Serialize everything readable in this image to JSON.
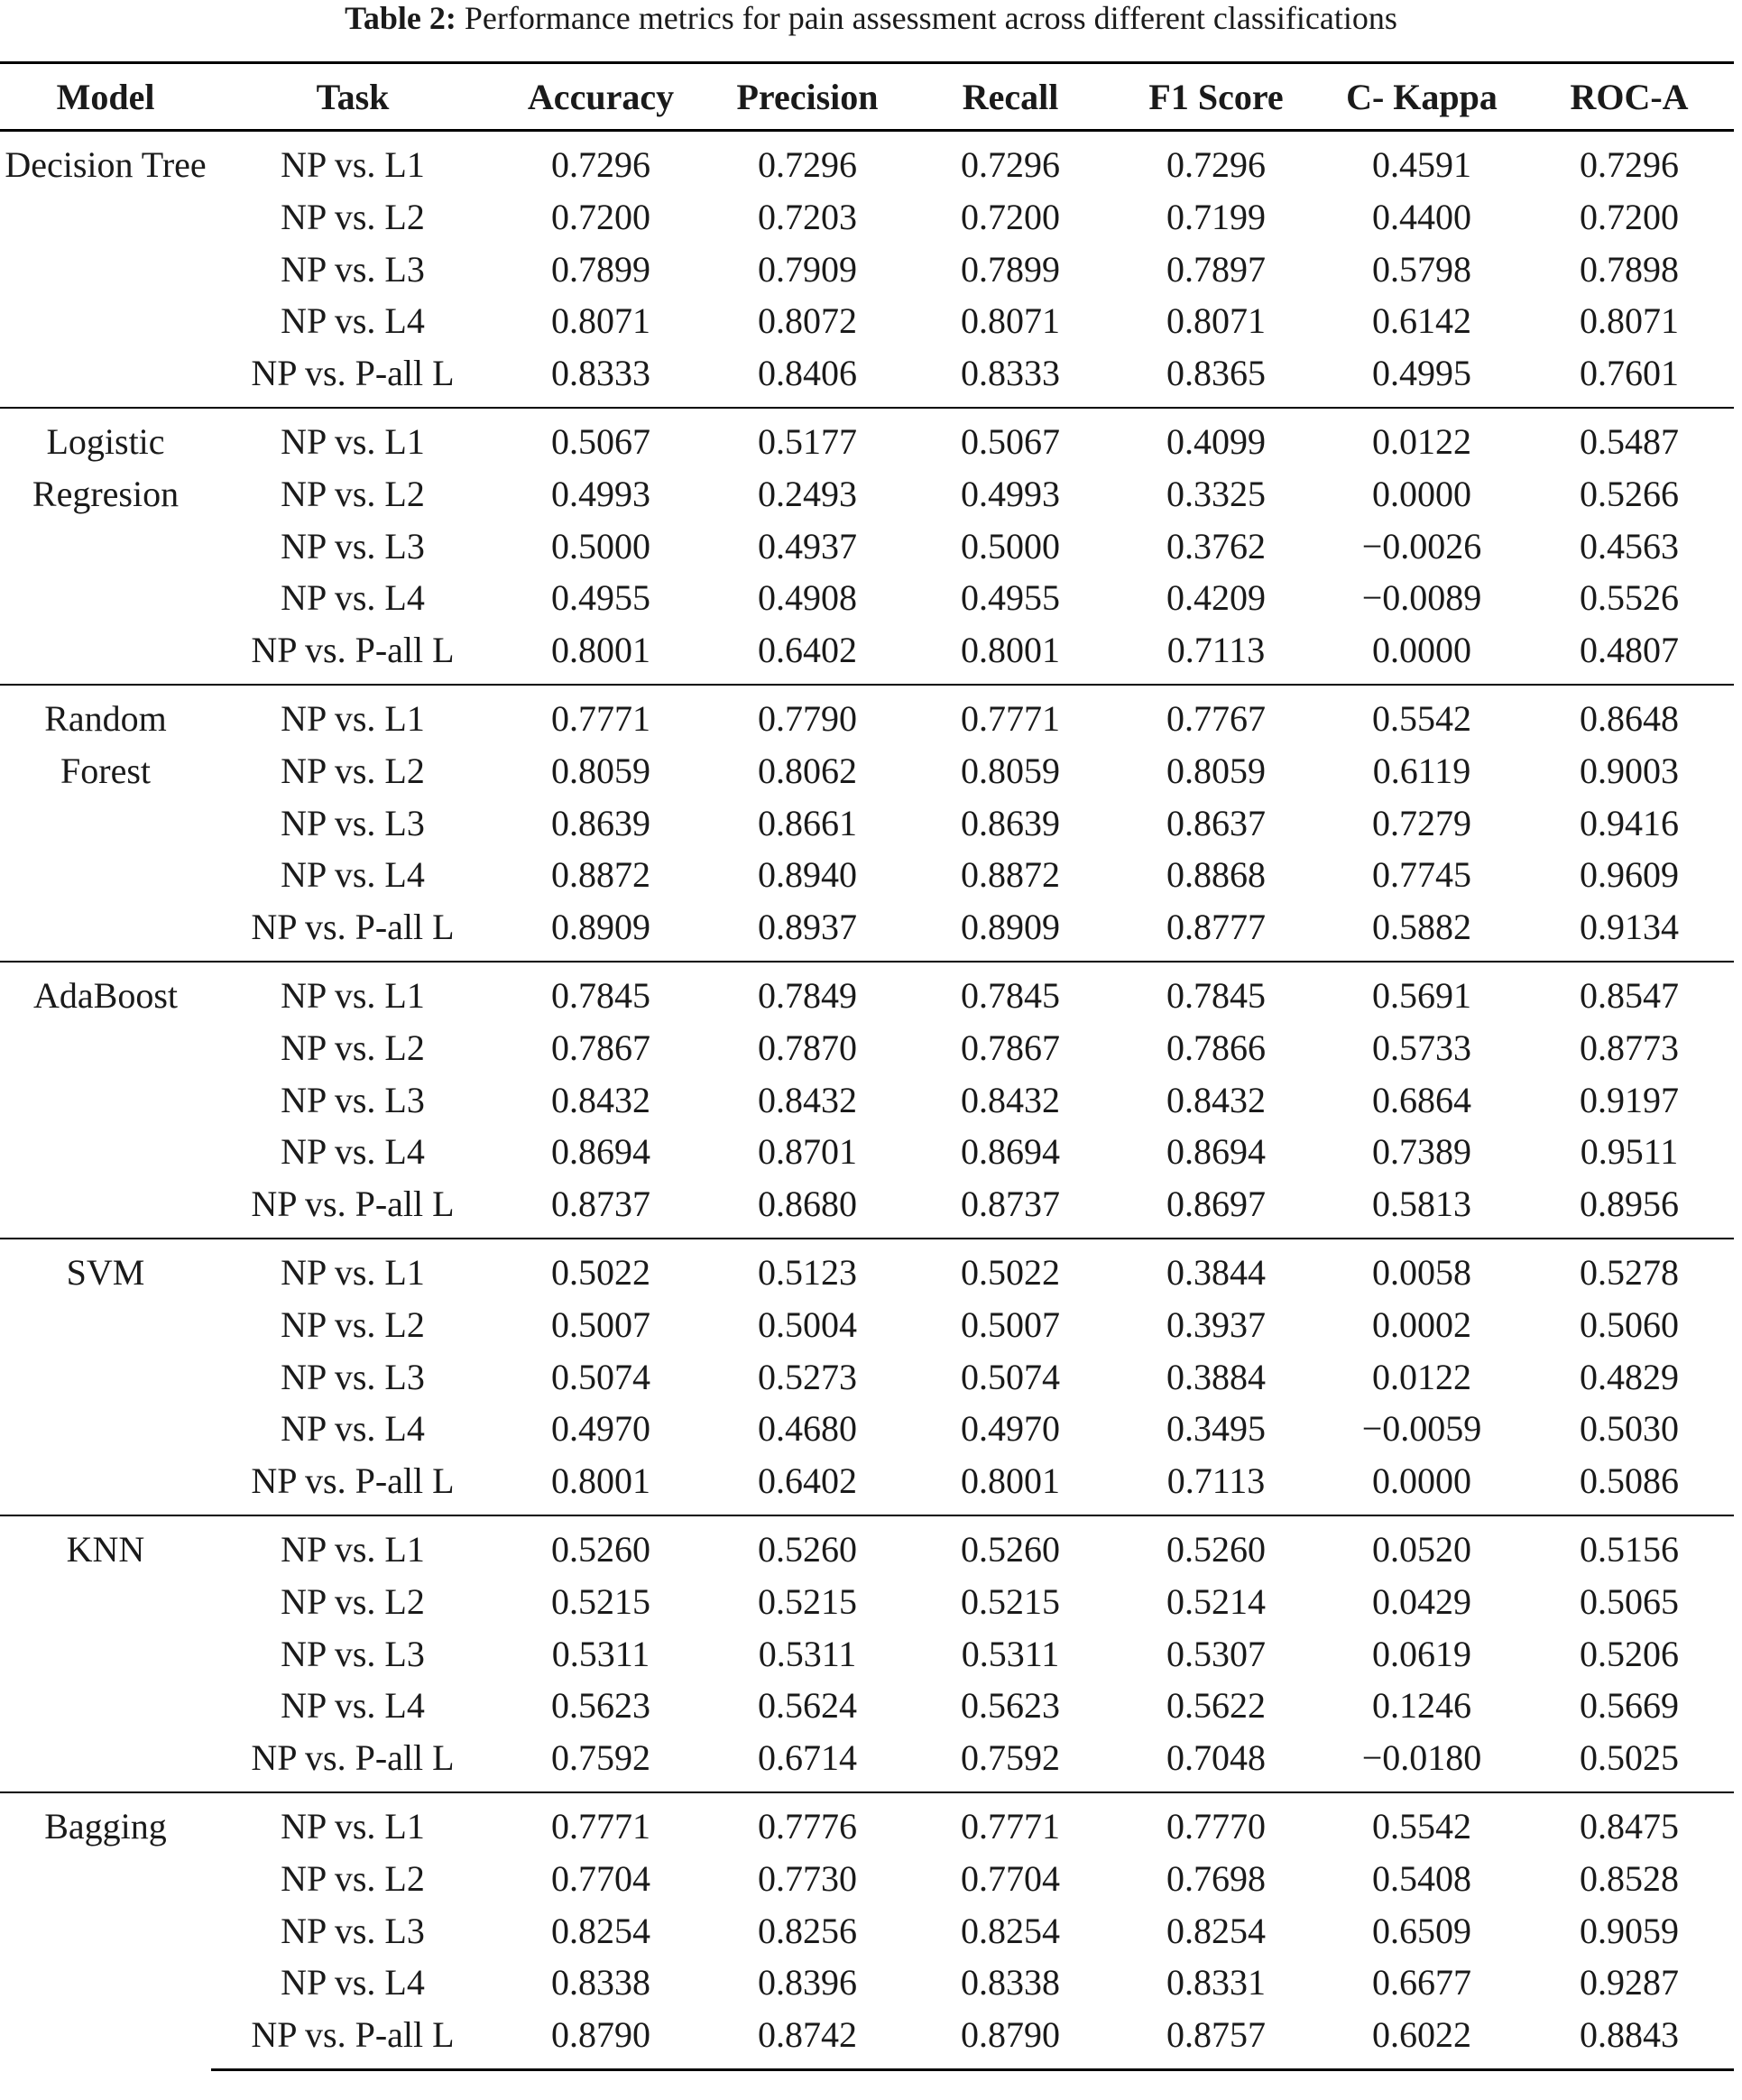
{
  "caption": {
    "label": "Table 2:",
    "text": "Performance metrics for pain assessment across different classifications"
  },
  "table": {
    "header": [
      "Model",
      "Task",
      "Accuracy",
      "Precision",
      "Recall",
      "F1 Score",
      "C- Kappa",
      "ROC-A"
    ],
    "groups": [
      {
        "model": "Decision Tree",
        "rows": [
          [
            "NP vs. L1",
            "0.7296",
            "0.7296",
            "0.7296",
            "0.7296",
            "0.4591",
            "0.7296"
          ],
          [
            "NP vs. L2",
            "0.7200",
            "0.7203",
            "0.7200",
            "0.7199",
            "0.4400",
            "0.7200"
          ],
          [
            "NP vs. L3",
            "0.7899",
            "0.7909",
            "0.7899",
            "0.7897",
            "0.5798",
            "0.7898"
          ],
          [
            "NP vs. L4",
            "0.8071",
            "0.8072",
            "0.8071",
            "0.8071",
            "0.6142",
            "0.8071"
          ],
          [
            "NP vs. P-all L",
            "0.8333",
            "0.8406",
            "0.8333",
            "0.8365",
            "0.4995",
            "0.7601"
          ]
        ]
      },
      {
        "model": "Logistic Regresion",
        "rows": [
          [
            "NP vs. L1",
            "0.5067",
            "0.5177",
            "0.5067",
            "0.4099",
            "0.0122",
            "0.5487"
          ],
          [
            "NP vs. L2",
            "0.4993",
            "0.2493",
            "0.4993",
            "0.3325",
            "0.0000",
            "0.5266"
          ],
          [
            "NP vs. L3",
            "0.5000",
            "0.4937",
            "0.5000",
            "0.3762",
            "−0.0026",
            "0.4563"
          ],
          [
            "NP vs. L4",
            "0.4955",
            "0.4908",
            "0.4955",
            "0.4209",
            "−0.0089",
            "0.5526"
          ],
          [
            "NP vs. P-all L",
            "0.8001",
            "0.6402",
            "0.8001",
            "0.7113",
            "0.0000",
            "0.4807"
          ]
        ]
      },
      {
        "model": "Random Forest",
        "rows": [
          [
            "NP vs. L1",
            "0.7771",
            "0.7790",
            "0.7771",
            "0.7767",
            "0.5542",
            "0.8648"
          ],
          [
            "NP vs. L2",
            "0.8059",
            "0.8062",
            "0.8059",
            "0.8059",
            "0.6119",
            "0.9003"
          ],
          [
            "NP vs. L3",
            "0.8639",
            "0.8661",
            "0.8639",
            "0.8637",
            "0.7279",
            "0.9416"
          ],
          [
            "NP vs. L4",
            "0.8872",
            "0.8940",
            "0.8872",
            "0.8868",
            "0.7745",
            "0.9609"
          ],
          [
            "NP vs. P-all L",
            "0.8909",
            "0.8937",
            "0.8909",
            "0.8777",
            "0.5882",
            "0.9134"
          ]
        ]
      },
      {
        "model": "AdaBoost",
        "rows": [
          [
            "NP vs. L1",
            "0.7845",
            "0.7849",
            "0.7845",
            "0.7845",
            "0.5691",
            "0.8547"
          ],
          [
            "NP vs. L2",
            "0.7867",
            "0.7870",
            "0.7867",
            "0.7866",
            "0.5733",
            "0.8773"
          ],
          [
            "NP vs. L3",
            "0.8432",
            "0.8432",
            "0.8432",
            "0.8432",
            "0.6864",
            "0.9197"
          ],
          [
            "NP vs. L4",
            "0.8694",
            "0.8701",
            "0.8694",
            "0.8694",
            "0.7389",
            "0.9511"
          ],
          [
            "NP vs. P-all L",
            "0.8737",
            "0.8680",
            "0.8737",
            "0.8697",
            "0.5813",
            "0.8956"
          ]
        ]
      },
      {
        "model": "SVM",
        "rows": [
          [
            "NP vs. L1",
            "0.5022",
            "0.5123",
            "0.5022",
            "0.3844",
            "0.0058",
            "0.5278"
          ],
          [
            "NP vs. L2",
            "0.5007",
            "0.5004",
            "0.5007",
            "0.3937",
            "0.0002",
            "0.5060"
          ],
          [
            "NP vs. L3",
            "0.5074",
            "0.5273",
            "0.5074",
            "0.3884",
            "0.0122",
            "0.4829"
          ],
          [
            "NP vs. L4",
            "0.4970",
            "0.4680",
            "0.4970",
            "0.3495",
            "−0.0059",
            "0.5030"
          ],
          [
            "NP vs. P-all L",
            "0.8001",
            "0.6402",
            "0.8001",
            "0.7113",
            "0.0000",
            "0.5086"
          ]
        ]
      },
      {
        "model": "KNN",
        "rows": [
          [
            "NP vs. L1",
            "0.5260",
            "0.5260",
            "0.5260",
            "0.5260",
            "0.0520",
            "0.5156"
          ],
          [
            "NP vs. L2",
            "0.5215",
            "0.5215",
            "0.5215",
            "0.5214",
            "0.0429",
            "0.5065"
          ],
          [
            "NP vs. L3",
            "0.5311",
            "0.5311",
            "0.5311",
            "0.5307",
            "0.0619",
            "0.5206"
          ],
          [
            "NP vs. L4",
            "0.5623",
            "0.5624",
            "0.5623",
            "0.5622",
            "0.1246",
            "0.5669"
          ],
          [
            "NP vs. P-all L",
            "0.7592",
            "0.6714",
            "0.7592",
            "0.7048",
            "−0.0180",
            "0.5025"
          ]
        ]
      },
      {
        "model": "Bagging",
        "rows": [
          [
            "NP vs. L1",
            "0.7771",
            "0.7776",
            "0.7771",
            "0.7770",
            "0.5542",
            "0.8475"
          ],
          [
            "NP vs. L2",
            "0.7704",
            "0.7730",
            "0.7704",
            "0.7698",
            "0.5408",
            "0.8528"
          ],
          [
            "NP vs. L3",
            "0.8254",
            "0.8256",
            "0.8254",
            "0.8254",
            "0.6509",
            "0.9059"
          ],
          [
            "NP vs. L4",
            "0.8338",
            "0.8396",
            "0.8338",
            "0.8331",
            "0.6677",
            "0.9287"
          ],
          [
            "NP vs. P-all L",
            "0.8790",
            "0.8742",
            "0.8790",
            "0.8757",
            "0.6022",
            "0.8843"
          ]
        ]
      }
    ]
  }
}
